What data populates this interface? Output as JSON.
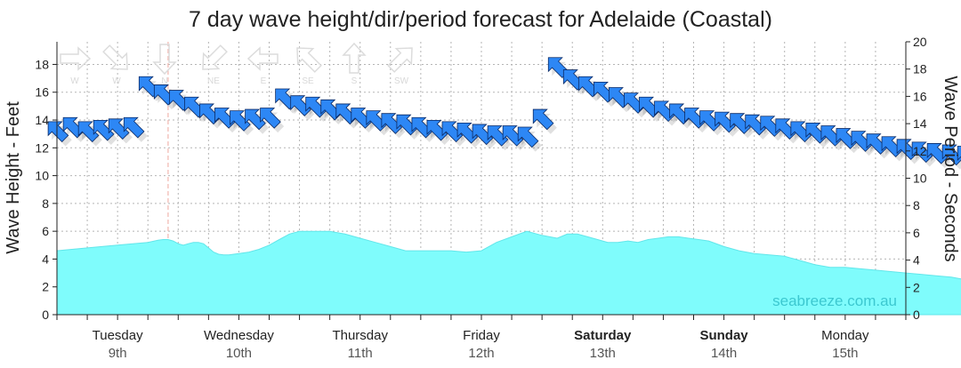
{
  "chart_data": {
    "type": "area",
    "title": "7 day wave height/dir/period forecast for Adelaide (Coastal)",
    "ylabel": "Wave Height - Feet",
    "ylabel_right": "Wave Period - Seconds",
    "ylim": [
      0,
      19.5
    ],
    "ylim_right": [
      0,
      20
    ],
    "yticks": [
      "0",
      "2",
      "4",
      "6",
      "8",
      "10",
      "12",
      "14",
      "16",
      "18"
    ],
    "yticks_right": [
      "0",
      "2",
      "4",
      "6",
      "8",
      "10",
      "12",
      "14",
      "16",
      "18",
      "20"
    ],
    "grid": true,
    "watermark": "seabreeze.com.au",
    "direction_legend": [
      "W",
      "W",
      "N",
      "NE",
      "E",
      "SE",
      "S",
      "SW"
    ],
    "days": [
      {
        "name": "Tuesday",
        "date": "9th",
        "bold": false
      },
      {
        "name": "Wednesday",
        "date": "10th",
        "bold": false
      },
      {
        "name": "Thursday",
        "date": "11th",
        "bold": false
      },
      {
        "name": "Friday",
        "date": "12th",
        "bold": false
      },
      {
        "name": "Saturday",
        "date": "13th",
        "bold": true
      },
      {
        "name": "Sunday",
        "date": "14th",
        "bold": true
      },
      {
        "name": "Monday",
        "date": "15th",
        "bold": false
      }
    ],
    "current_time_hour": 22,
    "series": [
      {
        "name": "Wave Height",
        "unit": "ft",
        "color": "#7ffcfc",
        "x_hours": [
          0,
          6,
          12,
          18,
          20,
          21,
          22,
          23,
          24,
          25,
          26,
          27,
          28,
          29,
          30,
          31,
          32,
          33,
          34,
          36,
          38,
          40,
          42,
          44,
          46,
          48,
          51,
          54,
          57,
          60,
          63,
          66,
          69,
          72,
          75,
          78,
          81,
          84,
          87,
          90,
          93,
          96,
          99,
          101,
          103,
          105,
          107,
          109,
          111,
          113,
          115,
          117,
          119,
          121,
          123,
          125,
          127,
          129,
          132,
          135,
          138,
          141,
          144,
          147,
          150,
          153,
          156,
          159,
          162,
          165,
          168,
          171,
          174,
          177,
          180
        ],
        "values": [
          4.6,
          4.8,
          5.0,
          5.2,
          5.35,
          5.4,
          5.4,
          5.3,
          5.1,
          5.0,
          5.1,
          5.2,
          5.2,
          5.1,
          4.8,
          4.5,
          4.35,
          4.3,
          4.3,
          4.4,
          4.5,
          4.7,
          5.0,
          5.4,
          5.8,
          6.0,
          6.0,
          6.0,
          5.8,
          5.5,
          5.2,
          4.9,
          4.6,
          4.6,
          4.6,
          4.6,
          4.5,
          4.6,
          5.2,
          5.6,
          6.0,
          5.7,
          5.5,
          5.8,
          5.8,
          5.6,
          5.4,
          5.2,
          5.2,
          5.3,
          5.2,
          5.4,
          5.5,
          5.6,
          5.6,
          5.5,
          5.4,
          5.3,
          4.9,
          4.6,
          4.4,
          4.3,
          4.2,
          3.9,
          3.6,
          3.4,
          3.4,
          3.3,
          3.2,
          3.1,
          3.0,
          2.9,
          2.8,
          2.7,
          2.5
        ]
      },
      {
        "name": "Wave Period",
        "unit": "s",
        "color": "#2d87f5",
        "x_hours": [
          0,
          3,
          6,
          9,
          12,
          15,
          18,
          21,
          24,
          27,
          30,
          33,
          36,
          39,
          42,
          45,
          48,
          51,
          54,
          57,
          60,
          63,
          66,
          69,
          72,
          75,
          78,
          81,
          84,
          87,
          90,
          93,
          96,
          99,
          102,
          105,
          108,
          111,
          114,
          117,
          120,
          123,
          126,
          129,
          132,
          135,
          138,
          141,
          144,
          147,
          150,
          153,
          156,
          159,
          162,
          165,
          168,
          171,
          174,
          177,
          180
        ],
        "values": [
          13.5,
          13.8,
          13.5,
          13.6,
          13.7,
          13.8,
          16.8,
          16.2,
          15.8,
          15.3,
          14.8,
          14.5,
          14.3,
          14.4,
          14.5,
          15.9,
          15.4,
          15.3,
          15.1,
          14.8,
          14.5,
          14.3,
          14.1,
          14.0,
          13.8,
          13.6,
          13.5,
          13.4,
          13.3,
          13.2,
          13.2,
          13.1,
          14.4,
          18.2,
          17.3,
          16.8,
          16.4,
          16.0,
          15.6,
          15.3,
          15.0,
          14.8,
          14.5,
          14.3,
          14.2,
          14.1,
          14.0,
          13.9,
          13.7,
          13.5,
          13.4,
          13.2,
          13.0,
          12.8,
          12.6,
          12.4,
          12.2,
          12.0,
          11.9,
          11.8,
          11.7
        ]
      }
    ]
  }
}
